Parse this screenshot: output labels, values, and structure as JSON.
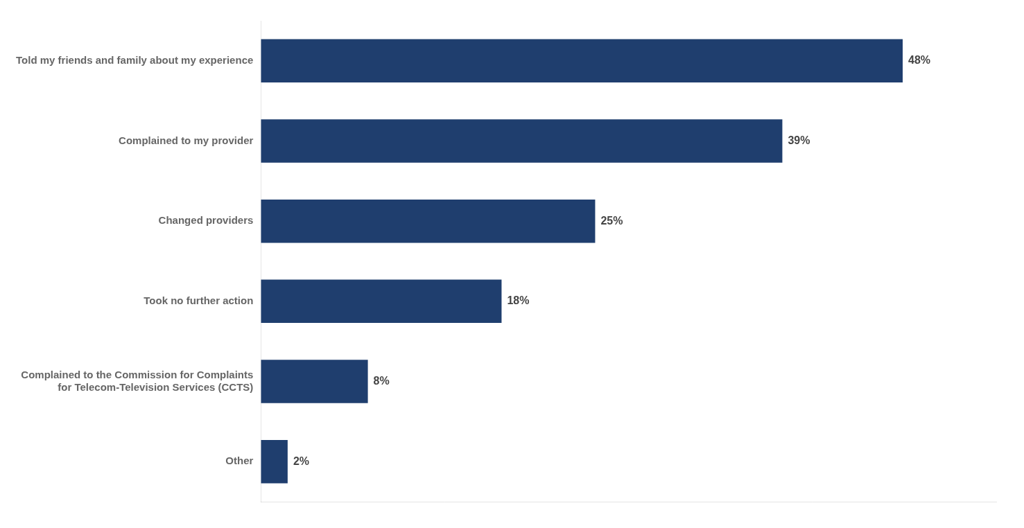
{
  "chart_data": {
    "type": "bar",
    "orientation": "horizontal",
    "categories": [
      "Told my friends and family about my experience",
      "Complained to my provider",
      "Changed providers",
      "Took no further action",
      "Complained to the Commission for Complaints\nfor Telecom-Television Services (CCTS)",
      "Other"
    ],
    "values": [
      48,
      39,
      25,
      18,
      8,
      2
    ],
    "value_labels": [
      "48%",
      "39%",
      "25%",
      "18%",
      "8%",
      "2%"
    ],
    "color": "#1F3E6E",
    "xlim": [
      0,
      55
    ],
    "data_labels": true,
    "tick_labels": "y",
    "grid": false
  }
}
